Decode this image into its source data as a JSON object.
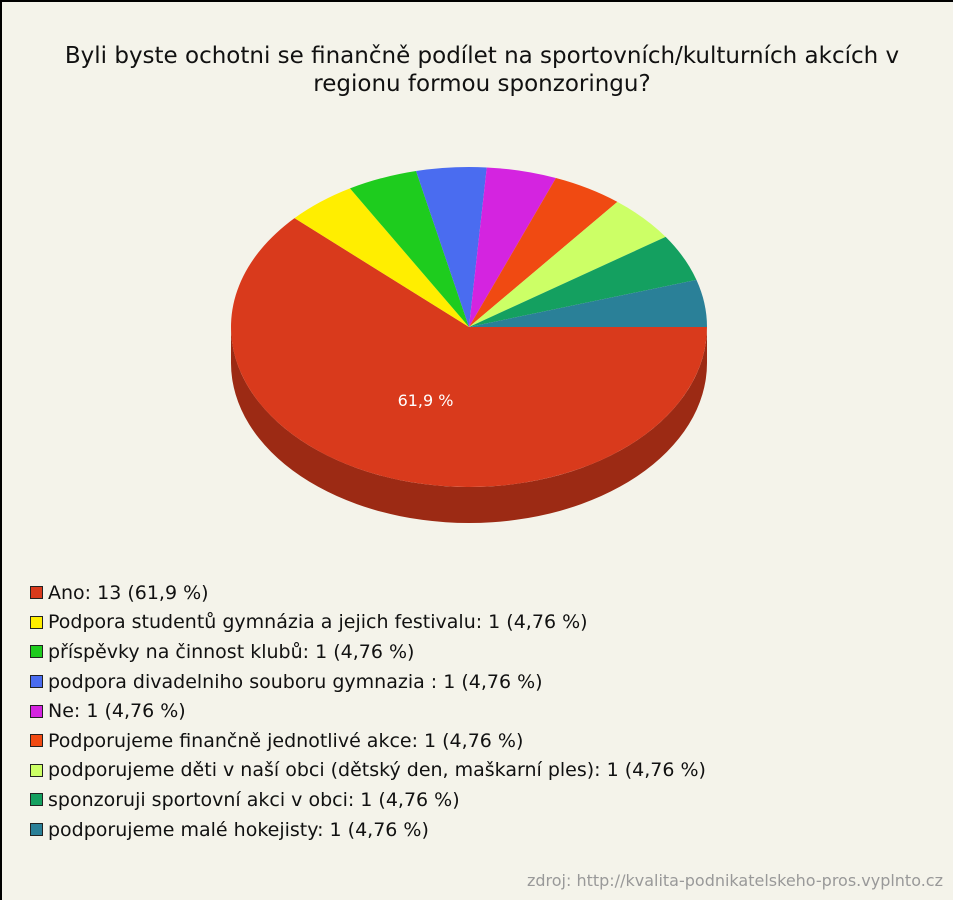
{
  "chart_data": {
    "type": "pie",
    "title": "Byli byste ochotni se finančně podílet na sportovních/kulturních akcích v regionu formou sponzoringu?",
    "categories": [
      "Ano: 13 (61,9 %)",
      "Podpora studentů gymnázia a jejich festivalu: 1 (4,76 %)",
      "příspěvky na činnost klubů: 1 (4,76 %)",
      "podpora divadelniho souboru gymnazia : 1 (4,76 %)",
      "Ne: 1 (4,76 %)",
      "Podporujeme finančně jednotlivé akce: 1 (4,76 %)",
      "podporujeme děti v naší obci (dětský den, maškarní ples): 1 (4,76 %)",
      "sponzoruji sportovní akci v obci: 1 (4,76 %)",
      "podporujeme malé hokejisty: 1 (4,76 %)"
    ],
    "values": [
      13,
      1,
      1,
      1,
      1,
      1,
      1,
      1,
      1
    ],
    "value_labels": [
      "61,9 %",
      null,
      null,
      null,
      null,
      null,
      null,
      null,
      null
    ],
    "colors": [
      "#d93a1c",
      "#ffee00",
      "#1ecc1e",
      "#4a6cf0",
      "#d424e0",
      "#f04a12",
      "#ccff66",
      "#14a060",
      "#2a8098"
    ],
    "source": "zdroj: http://kvalita-podnikatelskeho-pros.vyplnto.cz"
  }
}
